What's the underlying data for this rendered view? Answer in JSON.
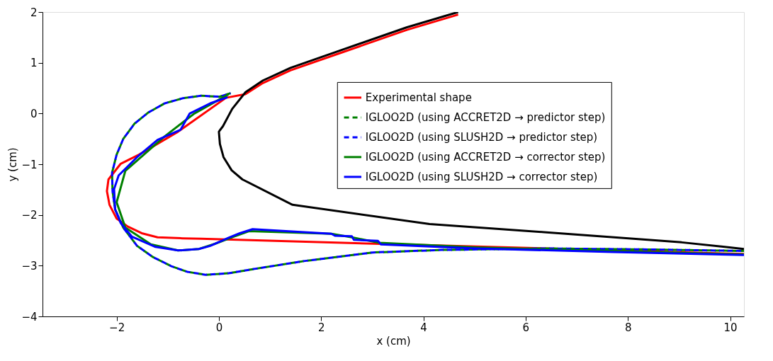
{
  "chart_data": {
    "type": "line",
    "xlabel": "x (cm)",
    "ylabel": "y (cm)",
    "xlim": [
      -3.45,
      10.27
    ],
    "ylim": [
      -4,
      2
    ],
    "xticks": [
      -2,
      0,
      2,
      4,
      6,
      8,
      10
    ],
    "yticks": [
      -4,
      -3,
      -2,
      -1,
      0,
      1,
      2
    ],
    "grid": false,
    "legend": "right",
    "marker": "none",
    "series": [
      {
        "color": "#000000",
        "line_style": "solid",
        "x": [
          4.68,
          3.68,
          2.34,
          1.4,
          0.86,
          0.52,
          0.26,
          0.08,
          0.02,
          0,
          0.02,
          0.09,
          0.25,
          0.46,
          1.44,
          4.12,
          6.36,
          9.05,
          10.27
        ],
        "values": [
          2.0,
          1.7,
          1.23,
          0.9,
          0.65,
          0.42,
          0.09,
          -0.25,
          -0.33,
          -0.36,
          -0.6,
          -0.86,
          -1.12,
          -1.3,
          -1.8,
          -2.18,
          -2.34,
          -2.54,
          -2.67
        ]
      },
      {
        "name": "Experimental shape",
        "color": "#ff0000",
        "line_style": "solid",
        "x": [
          4.68,
          3.68,
          2.34,
          1.4,
          0.86,
          0.52,
          0.14,
          -0.8,
          -1.56,
          -1.92,
          -2.16,
          -2.19,
          -2.14,
          -2.0,
          -1.78,
          -1.51,
          -1.2,
          -0.71,
          -0.35,
          10.27
        ],
        "values": [
          1.95,
          1.65,
          1.18,
          0.85,
          0.6,
          0.38,
          0.31,
          -0.36,
          -0.81,
          -0.99,
          -1.3,
          -1.53,
          -1.8,
          -2.07,
          -2.23,
          -2.36,
          -2.44,
          -2.46,
          -2.47,
          -2.77
        ]
      },
      {
        "name": "IGLOO2D (using ACCRET2D → predictor step)",
        "color": "#008000",
        "line_style": "dashed",
        "x": [
          0.23,
          0.01,
          -0.35,
          -0.71,
          -1.06,
          -1.38,
          -1.65,
          -1.87,
          -2.0,
          -2.09,
          -2.08,
          -2.03,
          -1.87,
          -1.6,
          -1.29,
          -0.93,
          -0.62,
          -0.26,
          0.19,
          0.72,
          1.66,
          3.01,
          4.35,
          6.36,
          8.38,
          10.27
        ],
        "values": [
          0.4,
          0.33,
          0.35,
          0.3,
          0.2,
          0.02,
          -0.2,
          -0.5,
          -0.81,
          -1.17,
          -1.53,
          -1.89,
          -2.25,
          -2.61,
          -2.83,
          -3.01,
          -3.12,
          -3.18,
          -3.15,
          -3.06,
          -2.91,
          -2.74,
          -2.69,
          -2.66,
          -2.68,
          -2.71
        ]
      },
      {
        "name": "IGLOO2D (using SLUSH2D → predictor step)",
        "color": "#0000ff",
        "line_style": "dashed",
        "x": [
          0.23,
          0.01,
          -0.35,
          -0.71,
          -1.06,
          -1.38,
          -1.65,
          -1.87,
          -2.0,
          -2.09,
          -2.08,
          -2.03,
          -1.87,
          -1.6,
          -1.29,
          -0.93,
          -0.62,
          -0.26,
          0.19,
          0.72,
          1.66,
          3.01,
          4.35,
          6.36,
          8.38,
          10.27
        ],
        "values": [
          0.4,
          0.33,
          0.35,
          0.3,
          0.2,
          0.02,
          -0.2,
          -0.5,
          -0.81,
          -1.17,
          -1.53,
          -1.89,
          -2.25,
          -2.61,
          -2.83,
          -3.01,
          -3.12,
          -3.18,
          -3.15,
          -3.06,
          -2.91,
          -2.74,
          -2.69,
          -2.66,
          -2.68,
          -2.71
        ]
      },
      {
        "name": "IGLOO2D (using ACCRET2D → corrector step)",
        "color": "#008000",
        "line_style": "solid",
        "x": [
          0.19,
          -0.48,
          -1.06,
          -1.83,
          -2.0,
          -1.83,
          -1.33,
          -0.8,
          -0.39,
          -0.08,
          0.28,
          0.59,
          2.2,
          2.6,
          3.14,
          5.02,
          7.7,
          10.27
        ],
        "values": [
          0.38,
          0.0,
          -0.45,
          -1.13,
          -1.75,
          -2.25,
          -2.58,
          -2.7,
          -2.67,
          -2.57,
          -2.43,
          -2.32,
          -2.37,
          -2.44,
          -2.55,
          -2.64,
          -2.71,
          -2.78
        ]
      },
      {
        "name": "IGLOO2D (using SLUSH2D → corrector step)",
        "color": "#0000ff",
        "line_style": "solid",
        "x": [
          0.17,
          -0.17,
          -0.57,
          -0.75,
          -1.2,
          -1.6,
          -1.96,
          -2.05,
          -2.03,
          -1.92,
          -1.7,
          -1.24,
          -0.8,
          -0.39,
          -0.17,
          0.19,
          0.41,
          0.66,
          2.2,
          2.27,
          2.6,
          2.64,
          3.11,
          3.17,
          5.02,
          7.7,
          10.27
        ],
        "values": [
          0.32,
          0.2,
          0.0,
          -0.32,
          -0.52,
          -0.86,
          -1.22,
          -1.49,
          -1.89,
          -2.16,
          -2.43,
          -2.63,
          -2.7,
          -2.67,
          -2.61,
          -2.45,
          -2.36,
          -2.28,
          -2.37,
          -2.41,
          -2.42,
          -2.49,
          -2.51,
          -2.58,
          -2.66,
          -2.73,
          -2.79
        ]
      }
    ]
  }
}
